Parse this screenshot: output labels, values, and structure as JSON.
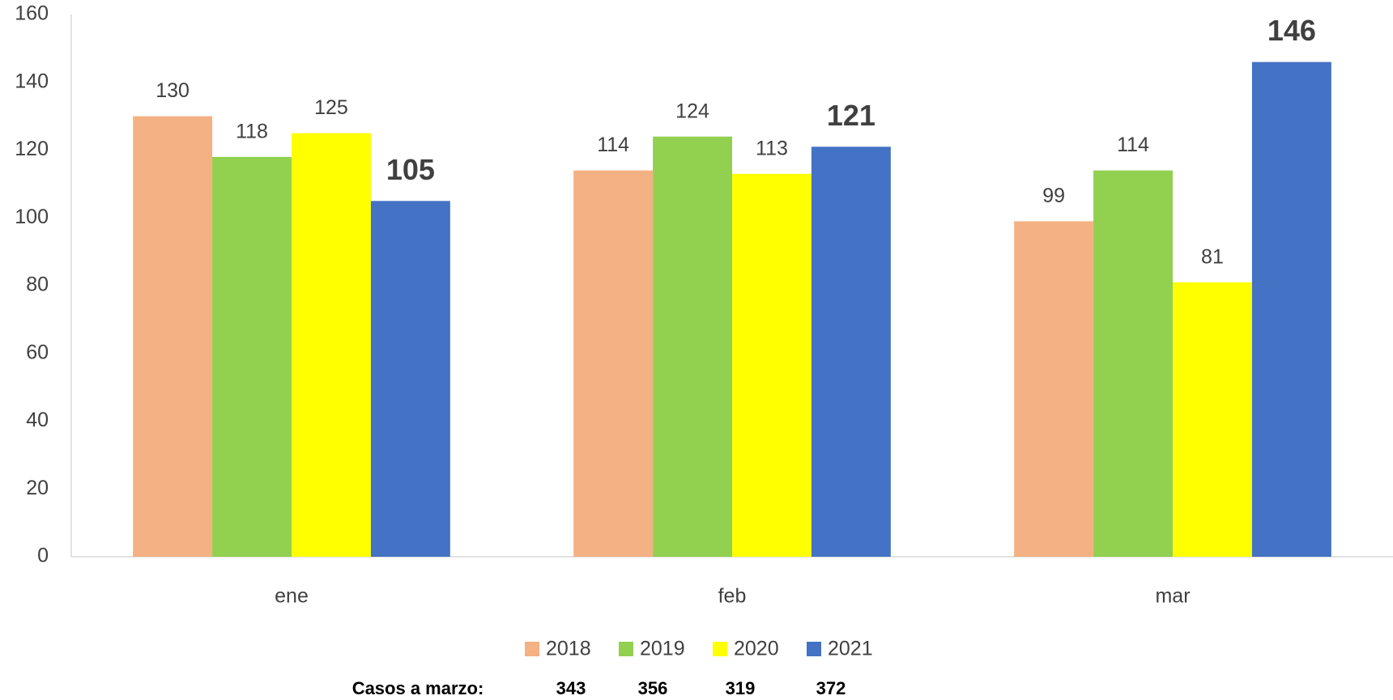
{
  "chart_data": {
    "type": "bar",
    "categories": [
      "ene",
      "feb",
      "mar"
    ],
    "series": [
      {
        "name": "2018",
        "color": "#f4b183",
        "values": [
          130,
          114,
          99
        ]
      },
      {
        "name": "2019",
        "color": "#92d050",
        "values": [
          118,
          124,
          114
        ]
      },
      {
        "name": "2020",
        "color": "#ffff00",
        "values": [
          125,
          113,
          81
        ]
      },
      {
        "name": "2021",
        "color": "#4472c4",
        "values": [
          105,
          121,
          146
        ],
        "label_bold": true
      }
    ],
    "ylim": [
      0,
      160
    ],
    "yticks": [
      0,
      20,
      40,
      60,
      80,
      100,
      120,
      140,
      160
    ],
    "grid": false,
    "legend": "bottom",
    "totals": {
      "label": "Casos a marzo:",
      "values": [
        343,
        356,
        319,
        372
      ]
    }
  }
}
